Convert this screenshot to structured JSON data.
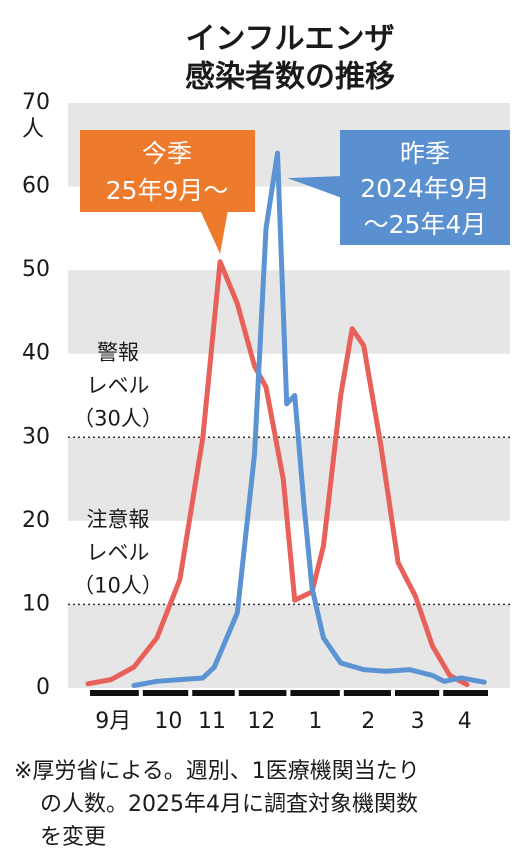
{
  "chart_data": {
    "type": "line",
    "title": [
      "インフルエンザ",
      "感染者数の推移"
    ],
    "y_unit": "人",
    "ylim": [
      0,
      70
    ],
    "yticks": [
      0,
      10,
      20,
      30,
      40,
      50,
      60,
      70
    ],
    "xlim": [
      0,
      35
    ],
    "xticks": [
      {
        "value": 2.2,
        "label": "9月"
      },
      {
        "value": 7,
        "label": "10"
      },
      {
        "value": 10.8,
        "label": "11"
      },
      {
        "value": 15.1,
        "label": "12"
      },
      {
        "value": 19.8,
        "label": "1"
      },
      {
        "value": 24.4,
        "label": "2"
      },
      {
        "value": 28.7,
        "label": "3"
      },
      {
        "value": 32.8,
        "label": "4"
      }
    ],
    "band_color": "#e6e6e6",
    "thresholds": [
      {
        "value": 30,
        "label": [
          "警報",
          "レベル",
          "（30人）"
        ]
      },
      {
        "value": 10,
        "label": [
          "注意報",
          "レベル",
          "（10人）"
        ]
      }
    ],
    "series": [
      {
        "name": "今季",
        "period": "25年9月〜",
        "color": "#e8605a",
        "label_color": "#ee7a2c",
        "x": [
          0,
          2,
          4,
          6,
          8,
          10,
          11.5,
          13,
          14.5,
          15.5,
          17,
          18,
          19.5,
          20.5,
          22,
          23,
          24,
          25.5,
          27,
          28.5,
          30,
          31.5,
          33
        ],
        "values": [
          0.5,
          1,
          2.5,
          6,
          13,
          30,
          51,
          46,
          38.5,
          36,
          25,
          10.5,
          11.5,
          17,
          35,
          43,
          41,
          29,
          15,
          11,
          5,
          1.5,
          0.4
        ]
      },
      {
        "name": "昨季",
        "period": [
          "2024年9月",
          "〜25年4月"
        ],
        "color": "#5b93d3",
        "label_color": "#5a90d0",
        "x": [
          4,
          6,
          8,
          10,
          11,
          13,
          14.5,
          15.5,
          16.5,
          17.3,
          18,
          18.8,
          19.5,
          20.5,
          22,
          24,
          26,
          28,
          30,
          31,
          32.5,
          34.5
        ],
        "values": [
          0.3,
          0.8,
          1,
          1.2,
          2.5,
          9,
          28,
          55,
          64,
          34,
          35,
          22,
          12,
          6,
          3,
          2.2,
          2,
          2.2,
          1.5,
          0.8,
          1.2,
          0.7
        ]
      }
    ],
    "footnote": [
      "※厚労省による。週別、1医療機関当たり",
      "の人数。2025年4月に調査対象機関数",
      "を変更"
    ]
  }
}
